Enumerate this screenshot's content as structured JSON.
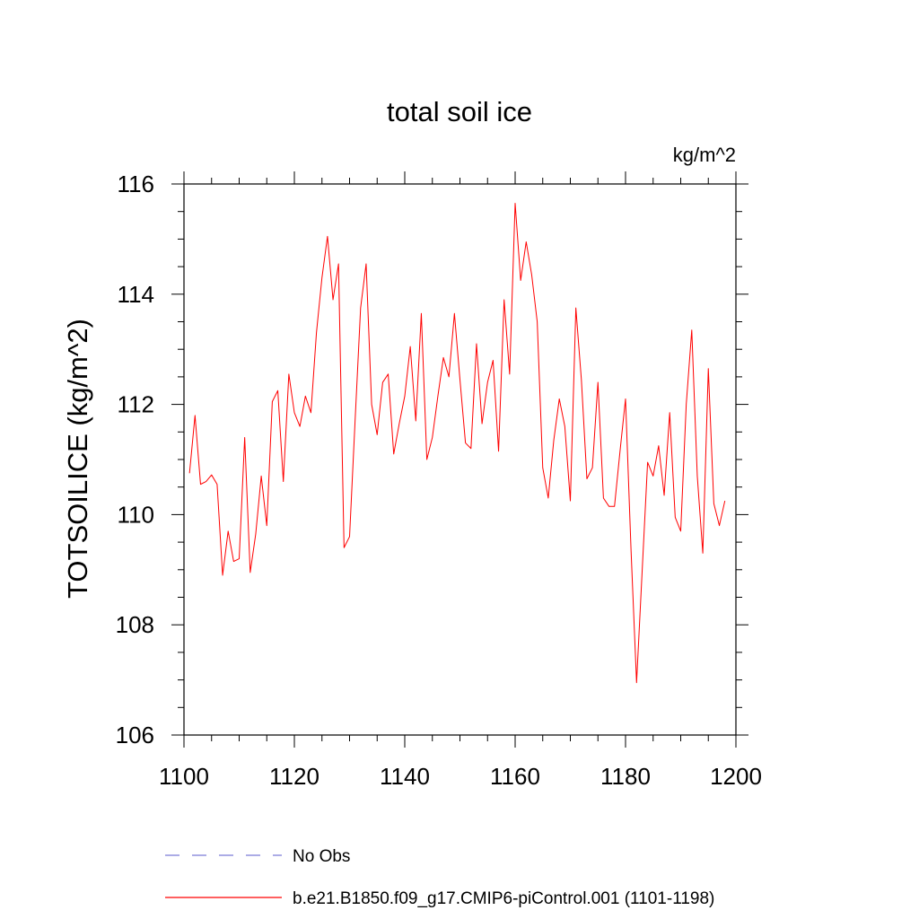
{
  "chart_data": {
    "type": "line",
    "title": "total soil ice",
    "units_label": "kg/m^2",
    "ylabel": "TOTSOILICE  (kg/m^2)",
    "xlabel": "",
    "xlim": [
      1100,
      1200
    ],
    "ylim": [
      106,
      116
    ],
    "x_ticks": [
      1100,
      1120,
      1140,
      1160,
      1180,
      1200
    ],
    "y_ticks": [
      106,
      108,
      110,
      112,
      114,
      116
    ],
    "grid": false,
    "legend_position": "bottom",
    "legend": [
      {
        "label": "No Obs",
        "color": "#7b7bd6",
        "style": "dashed"
      },
      {
        "label": "b.e21.B1850.f09_g17.CMIP6-piControl.001 (1101-1198)",
        "color": "#ff0000",
        "style": "solid"
      }
    ],
    "series": [
      {
        "name": "b.e21.B1850.f09_g17.CMIP6-piControl.001 (1101-1198)",
        "color": "#ff0000",
        "x": [
          1101,
          1102,
          1103,
          1104,
          1105,
          1106,
          1107,
          1108,
          1109,
          1110,
          1111,
          1112,
          1113,
          1114,
          1115,
          1116,
          1117,
          1118,
          1119,
          1120,
          1121,
          1122,
          1123,
          1124,
          1125,
          1126,
          1127,
          1128,
          1129,
          1130,
          1131,
          1132,
          1133,
          1134,
          1135,
          1136,
          1137,
          1138,
          1139,
          1140,
          1141,
          1142,
          1143,
          1144,
          1145,
          1146,
          1147,
          1148,
          1149,
          1150,
          1151,
          1152,
          1153,
          1154,
          1155,
          1156,
          1157,
          1158,
          1159,
          1160,
          1161,
          1162,
          1163,
          1164,
          1165,
          1166,
          1167,
          1168,
          1169,
          1170,
          1171,
          1172,
          1173,
          1174,
          1175,
          1176,
          1177,
          1178,
          1179,
          1180,
          1181,
          1182,
          1183,
          1184,
          1185,
          1186,
          1187,
          1188,
          1189,
          1190,
          1191,
          1192,
          1193,
          1194,
          1195,
          1196,
          1197,
          1198
        ],
        "y": [
          110.75,
          111.8,
          110.55,
          110.6,
          110.72,
          110.55,
          108.9,
          109.7,
          109.15,
          109.2,
          111.4,
          108.95,
          109.65,
          110.7,
          109.8,
          112.05,
          112.25,
          110.6,
          112.55,
          111.85,
          111.6,
          112.15,
          111.85,
          113.3,
          114.3,
          115.05,
          113.9,
          114.55,
          109.4,
          109.6,
          111.7,
          113.75,
          114.55,
          112.0,
          111.45,
          112.4,
          112.55,
          111.1,
          111.65,
          112.15,
          113.05,
          111.7,
          113.65,
          111.0,
          111.4,
          112.15,
          112.85,
          112.5,
          113.65,
          112.45,
          111.3,
          111.2,
          113.1,
          111.65,
          112.4,
          112.8,
          111.15,
          113.9,
          112.55,
          115.65,
          114.25,
          114.95,
          114.35,
          113.5,
          110.85,
          110.3,
          111.35,
          112.1,
          111.6,
          110.25,
          113.75,
          112.45,
          110.65,
          110.85,
          112.4,
          110.3,
          110.15,
          110.15,
          111.15,
          112.1,
          109.35,
          106.95,
          108.95,
          110.95,
          110.7,
          111.25,
          110.35,
          111.85,
          109.95,
          109.7,
          112.0,
          113.35,
          110.7,
          109.3,
          112.65,
          110.2,
          109.8,
          110.25
        ]
      }
    ]
  }
}
